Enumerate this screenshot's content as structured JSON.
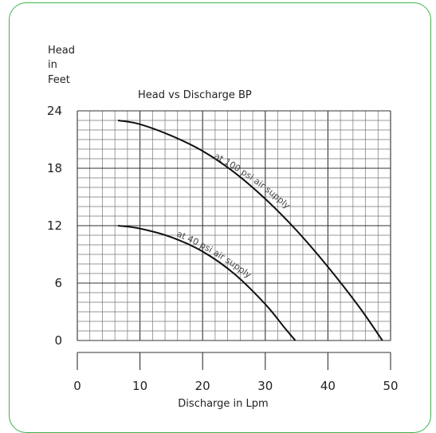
{
  "chart_data": {
    "type": "line",
    "title": "Head vs Discharge BP",
    "ylabel_lines": [
      "Head",
      "in",
      "Feet"
    ],
    "xlabel": "Discharge in Lpm",
    "xlim": [
      0,
      50
    ],
    "ylim": [
      0,
      24
    ],
    "x_ticks": [
      0,
      10,
      20,
      30,
      40,
      50
    ],
    "y_ticks": [
      0,
      6,
      12,
      18,
      24
    ],
    "grid": true,
    "border_color": "#3cb44a",
    "series": [
      {
        "name": "at 100 psi air supply",
        "x": [
          6.5,
          10,
          15,
          20,
          25,
          30,
          35,
          40,
          45,
          48.7
        ],
        "y": [
          23,
          22.6,
          21.4,
          19.8,
          17.6,
          14.8,
          11.5,
          7.7,
          3.5,
          0
        ]
      },
      {
        "name": "at 40 psi air supply",
        "x": [
          6.5,
          10,
          15,
          20,
          25,
          30,
          33,
          34.8
        ],
        "y": [
          12,
          11.7,
          10.8,
          9.3,
          7.0,
          3.8,
          1.4,
          0
        ]
      }
    ]
  }
}
